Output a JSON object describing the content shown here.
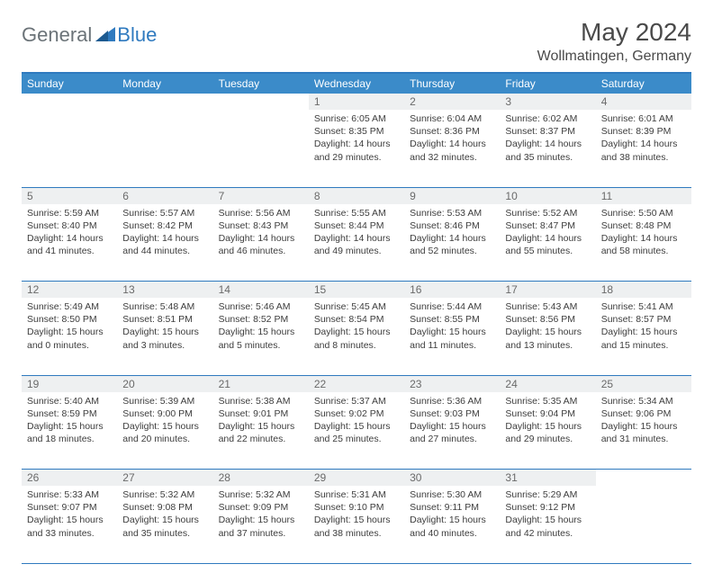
{
  "brand": {
    "part1": "General",
    "part2": "Blue"
  },
  "title": "May 2024",
  "location": "Wollmatingen, Germany",
  "colors": {
    "header_bg": "#3b8bc9",
    "accent": "#2f7abf",
    "daynum_bg": "#eef0f1",
    "text": "#3d3d3d",
    "title_text": "#4a4a4a"
  },
  "weekdays": [
    "Sunday",
    "Monday",
    "Tuesday",
    "Wednesday",
    "Thursday",
    "Friday",
    "Saturday"
  ],
  "weeks": [
    {
      "nums": [
        "",
        "",
        "",
        "1",
        "2",
        "3",
        "4"
      ],
      "cells": [
        null,
        null,
        null,
        {
          "sunrise": "6:05 AM",
          "sunset": "8:35 PM",
          "day_h": 14,
          "day_m": 29
        },
        {
          "sunrise": "6:04 AM",
          "sunset": "8:36 PM",
          "day_h": 14,
          "day_m": 32
        },
        {
          "sunrise": "6:02 AM",
          "sunset": "8:37 PM",
          "day_h": 14,
          "day_m": 35
        },
        {
          "sunrise": "6:01 AM",
          "sunset": "8:39 PM",
          "day_h": 14,
          "day_m": 38
        }
      ]
    },
    {
      "nums": [
        "5",
        "6",
        "7",
        "8",
        "9",
        "10",
        "11"
      ],
      "cells": [
        {
          "sunrise": "5:59 AM",
          "sunset": "8:40 PM",
          "day_h": 14,
          "day_m": 41
        },
        {
          "sunrise": "5:57 AM",
          "sunset": "8:42 PM",
          "day_h": 14,
          "day_m": 44
        },
        {
          "sunrise": "5:56 AM",
          "sunset": "8:43 PM",
          "day_h": 14,
          "day_m": 46
        },
        {
          "sunrise": "5:55 AM",
          "sunset": "8:44 PM",
          "day_h": 14,
          "day_m": 49
        },
        {
          "sunrise": "5:53 AM",
          "sunset": "8:46 PM",
          "day_h": 14,
          "day_m": 52
        },
        {
          "sunrise": "5:52 AM",
          "sunset": "8:47 PM",
          "day_h": 14,
          "day_m": 55
        },
        {
          "sunrise": "5:50 AM",
          "sunset": "8:48 PM",
          "day_h": 14,
          "day_m": 58
        }
      ]
    },
    {
      "nums": [
        "12",
        "13",
        "14",
        "15",
        "16",
        "17",
        "18"
      ],
      "cells": [
        {
          "sunrise": "5:49 AM",
          "sunset": "8:50 PM",
          "day_h": 15,
          "day_m": 0
        },
        {
          "sunrise": "5:48 AM",
          "sunset": "8:51 PM",
          "day_h": 15,
          "day_m": 3
        },
        {
          "sunrise": "5:46 AM",
          "sunset": "8:52 PM",
          "day_h": 15,
          "day_m": 5
        },
        {
          "sunrise": "5:45 AM",
          "sunset": "8:54 PM",
          "day_h": 15,
          "day_m": 8
        },
        {
          "sunrise": "5:44 AM",
          "sunset": "8:55 PM",
          "day_h": 15,
          "day_m": 11
        },
        {
          "sunrise": "5:43 AM",
          "sunset": "8:56 PM",
          "day_h": 15,
          "day_m": 13
        },
        {
          "sunrise": "5:41 AM",
          "sunset": "8:57 PM",
          "day_h": 15,
          "day_m": 15
        }
      ]
    },
    {
      "nums": [
        "19",
        "20",
        "21",
        "22",
        "23",
        "24",
        "25"
      ],
      "cells": [
        {
          "sunrise": "5:40 AM",
          "sunset": "8:59 PM",
          "day_h": 15,
          "day_m": 18
        },
        {
          "sunrise": "5:39 AM",
          "sunset": "9:00 PM",
          "day_h": 15,
          "day_m": 20
        },
        {
          "sunrise": "5:38 AM",
          "sunset": "9:01 PM",
          "day_h": 15,
          "day_m": 22
        },
        {
          "sunrise": "5:37 AM",
          "sunset": "9:02 PM",
          "day_h": 15,
          "day_m": 25
        },
        {
          "sunrise": "5:36 AM",
          "sunset": "9:03 PM",
          "day_h": 15,
          "day_m": 27
        },
        {
          "sunrise": "5:35 AM",
          "sunset": "9:04 PM",
          "day_h": 15,
          "day_m": 29
        },
        {
          "sunrise": "5:34 AM",
          "sunset": "9:06 PM",
          "day_h": 15,
          "day_m": 31
        }
      ]
    },
    {
      "nums": [
        "26",
        "27",
        "28",
        "29",
        "30",
        "31",
        ""
      ],
      "cells": [
        {
          "sunrise": "5:33 AM",
          "sunset": "9:07 PM",
          "day_h": 15,
          "day_m": 33
        },
        {
          "sunrise": "5:32 AM",
          "sunset": "9:08 PM",
          "day_h": 15,
          "day_m": 35
        },
        {
          "sunrise": "5:32 AM",
          "sunset": "9:09 PM",
          "day_h": 15,
          "day_m": 37
        },
        {
          "sunrise": "5:31 AM",
          "sunset": "9:10 PM",
          "day_h": 15,
          "day_m": 38
        },
        {
          "sunrise": "5:30 AM",
          "sunset": "9:11 PM",
          "day_h": 15,
          "day_m": 40
        },
        {
          "sunrise": "5:29 AM",
          "sunset": "9:12 PM",
          "day_h": 15,
          "day_m": 42
        },
        null
      ]
    }
  ],
  "labels": {
    "sunrise": "Sunrise:",
    "sunset": "Sunset:",
    "daylight": "Daylight:",
    "hours": "hours",
    "and": "and",
    "minutes": "minutes."
  }
}
